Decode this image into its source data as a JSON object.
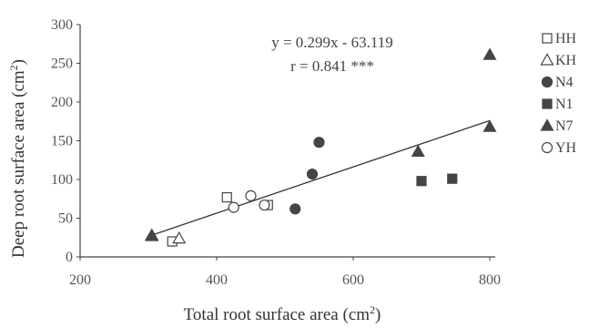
{
  "chart_data": {
    "type": "scatter",
    "xlabel": "Total root surface area (cm²)",
    "ylabel": "Deep root surface area (cm²)",
    "xlim": [
      200,
      800
    ],
    "ylim": [
      0,
      300
    ],
    "x_ticks": [
      "200",
      "400",
      "600",
      "800"
    ],
    "y_ticks": [
      "0",
      "50",
      "100",
      "150",
      "200",
      "250",
      "300"
    ],
    "grid": false,
    "legend_position": "right",
    "annotation": {
      "equation": "y = 0.299x - 63.119",
      "correlation": "r = 0.841 ***"
    },
    "trendline": {
      "slope": 0.299,
      "intercept": -63.119,
      "x_range": [
        305,
        800
      ]
    },
    "series": [
      {
        "name": "HH",
        "marker": "square-open",
        "points": [
          [
            335,
            20
          ],
          [
            415,
            77
          ],
          [
            475,
            67
          ]
        ]
      },
      {
        "name": "KH",
        "marker": "triangle-open",
        "points": [
          [
            305,
            27
          ],
          [
            345,
            24
          ]
        ]
      },
      {
        "name": "N4",
        "marker": "circle-filled",
        "points": [
          [
            515,
            62
          ],
          [
            540,
            107
          ],
          [
            550,
            148
          ]
        ]
      },
      {
        "name": "N1",
        "marker": "square-filled",
        "points": [
          [
            700,
            98
          ],
          [
            745,
            101
          ]
        ]
      },
      {
        "name": "N7",
        "marker": "triangle-filled",
        "points": [
          [
            305,
            28
          ],
          [
            695,
            136
          ],
          [
            800,
            168
          ],
          [
            800,
            261
          ]
        ]
      },
      {
        "name": "YH",
        "marker": "circle-open",
        "points": [
          [
            425,
            64
          ],
          [
            450,
            79
          ],
          [
            470,
            67
          ]
        ]
      }
    ]
  }
}
